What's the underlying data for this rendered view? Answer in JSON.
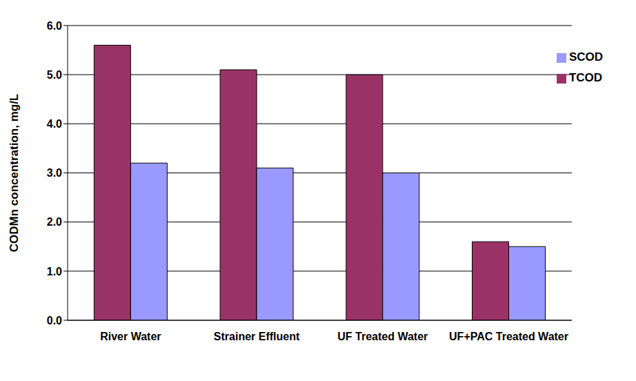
{
  "chart_data": {
    "type": "bar",
    "categories": [
      "River Water",
      "Strainer Effluent",
      "UF Treated Water",
      "UF+PAC Treated Water"
    ],
    "series": [
      {
        "name": "TCOD",
        "color": "#993366",
        "values": [
          5.6,
          5.1,
          5.0,
          1.6
        ]
      },
      {
        "name": "SCOD",
        "color": "#9999FF",
        "values": [
          3.2,
          3.1,
          3.0,
          1.5
        ]
      }
    ],
    "y_label": "CODMn concentration, mg/L",
    "ylim": [
      0,
      6
    ],
    "yticks": [
      {
        "value": 0,
        "label": "0.0"
      },
      {
        "value": 1,
        "label": "1.0"
      },
      {
        "value": 2,
        "label": "2.0"
      },
      {
        "value": 3,
        "label": "3.0"
      },
      {
        "value": 4,
        "label": "4.0"
      },
      {
        "value": 5,
        "label": "5.0"
      },
      {
        "value": 6,
        "label": "6.0"
      }
    ],
    "grid": true,
    "legend": "upper right"
  }
}
